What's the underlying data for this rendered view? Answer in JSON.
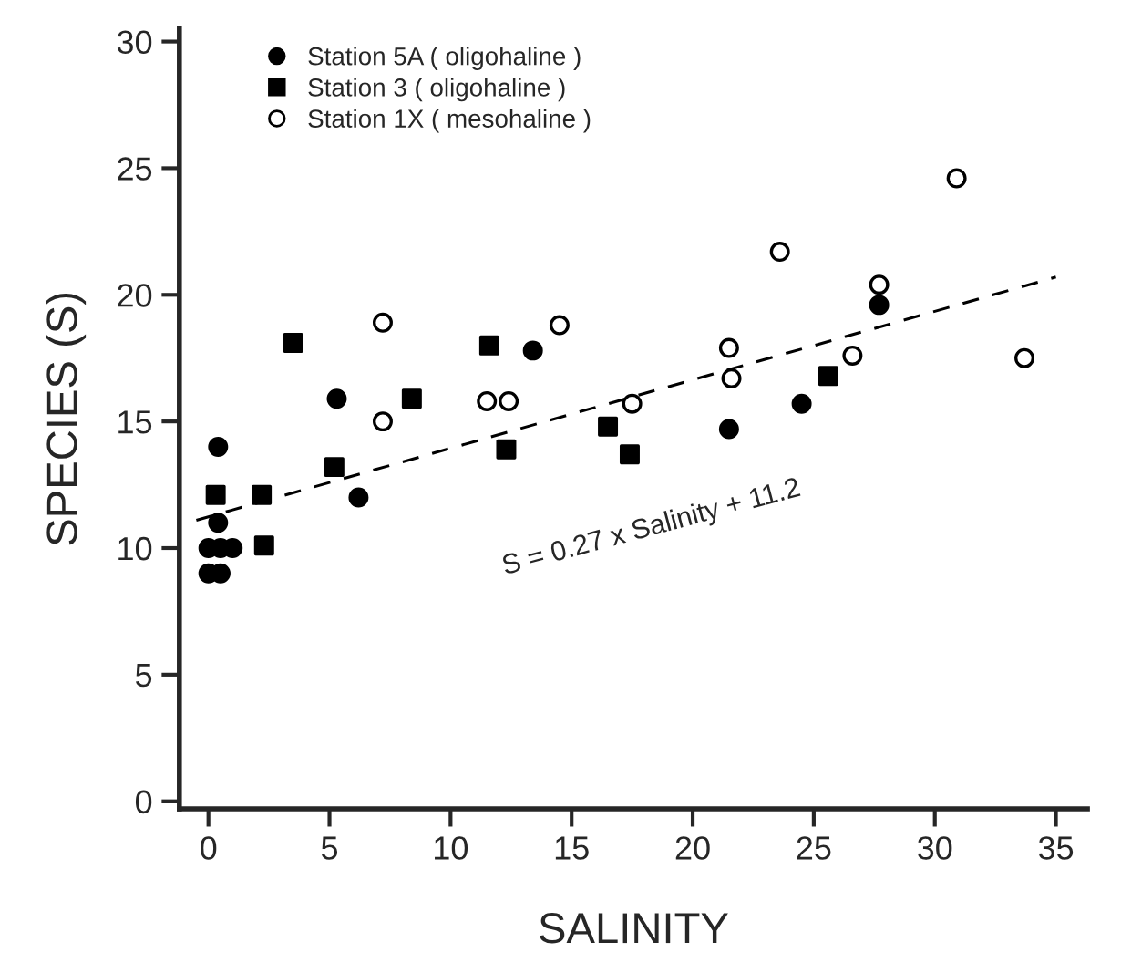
{
  "chart_data": {
    "type": "scatter",
    "xlabel": "SALINITY",
    "ylabel": "SPECIES (S)",
    "xlim": [
      -1.2,
      36.3
    ],
    "ylim": [
      -0.3,
      30.5
    ],
    "xticks": [
      0,
      5,
      10,
      15,
      20,
      25,
      30,
      35
    ],
    "yticks": [
      0,
      5,
      10,
      15,
      20,
      25,
      30
    ],
    "grid": false,
    "legend": "top left",
    "annotations": [
      "S = 0.27 x Salinity + 11.2"
    ],
    "series": [
      {
        "name": "Station 5A ( oligohaline )",
        "color": "#000000",
        "marker": "circle",
        "x": [
          0.4,
          0,
          0.5,
          1,
          0,
          0.5,
          0.4,
          5.3,
          6.2,
          13.4,
          21.5,
          24.5,
          27.7
        ],
        "values": [
          14,
          10,
          10,
          10,
          9,
          9,
          11,
          15.9,
          12,
          17.8,
          14.7,
          15.7,
          19.6
        ]
      },
      {
        "name": "Station 3 ( oligohaline )",
        "color": "#000000",
        "marker": "square",
        "x": [
          0.3,
          2.2,
          2.3,
          3.5,
          5.2,
          8.4,
          11.6,
          12.3,
          16.5,
          17.4,
          25.6
        ],
        "values": [
          12.1,
          12.1,
          10.1,
          18.1,
          13.2,
          15.9,
          18,
          13.9,
          14.8,
          13.7,
          16.8
        ]
      },
      {
        "name": "Station 1X ( mesohaline )",
        "color": "#ffffff",
        "marker": "circle",
        "x": [
          7.2,
          7.2,
          14.5,
          11.5,
          12.4,
          17.5,
          21.5,
          21.6,
          23.6,
          26.6,
          27.7,
          30.9,
          33.7
        ],
        "values": [
          18.9,
          15,
          18.8,
          15.8,
          15.8,
          15.7,
          17.9,
          16.7,
          21.7,
          17.6,
          20.4,
          24.6,
          17.5
        ]
      },
      {
        "type": "line",
        "color": "#000000",
        "line_style": "dashed",
        "marker": "none",
        "x": [
          -0.5,
          35
        ],
        "values": [
          11.1,
          20.7
        ]
      }
    ]
  }
}
